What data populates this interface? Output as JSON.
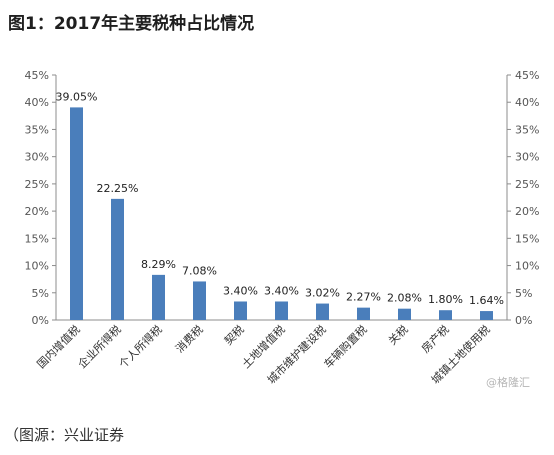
{
  "title": "图1：2017年主要税种占比情况",
  "source": "（图源：兴业证券",
  "watermark": "@格隆汇",
  "colors": {
    "bar": "#4a7ebb",
    "axis": "#8c8c8c"
  },
  "chart_data": {
    "type": "bar",
    "title": "图1：2017年主要税种占比情况",
    "categories": [
      "国内增值税",
      "企业所得税",
      "个人所得税",
      "消费税",
      "契税",
      "土地增值税",
      "城市维护建设税",
      "车辆购置税",
      "关税",
      "房产税",
      "城镇土地使用税"
    ],
    "values": [
      39.05,
      22.25,
      8.29,
      7.08,
      3.4,
      3.4,
      3.02,
      2.27,
      2.08,
      1.8,
      1.64
    ],
    "data_labels": [
      "39.05%",
      "22.25%",
      "8.29%",
      "7.08%",
      "3.40%",
      "3.40%",
      "3.02%",
      "2.27%",
      "2.08%",
      "1.80%",
      "1.64%"
    ],
    "ylim": [
      0,
      45
    ],
    "yticks": [
      "0%",
      "5%",
      "10%",
      "15%",
      "20%",
      "25%",
      "30%",
      "35%",
      "40%",
      "45%"
    ],
    "secondary_yticks": [
      "0%",
      "5%",
      "10%",
      "15%",
      "20%",
      "25%",
      "30%",
      "35%",
      "40%",
      "45%"
    ],
    "grid": false,
    "legend": "none"
  }
}
